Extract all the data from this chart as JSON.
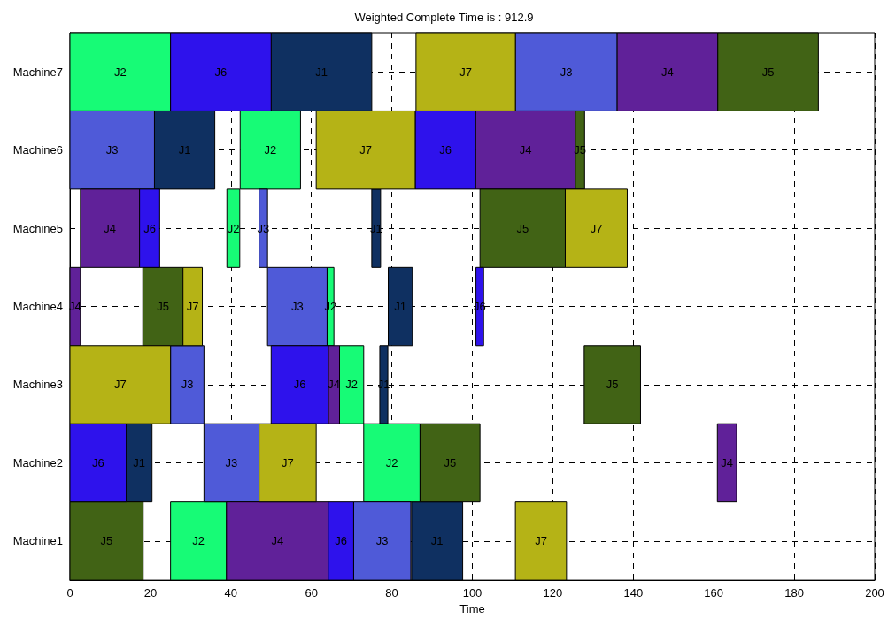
{
  "chart_data": {
    "type": "bar",
    "orientation": "horizontal",
    "title": "Weighted Complete Time is : 912.9",
    "xlabel": "Time",
    "categories": [
      "Machine7",
      "Machine6",
      "Machine5",
      "Machine4",
      "Machine3",
      "Machine2",
      "Machine1"
    ],
    "xlim": [
      0,
      200
    ],
    "xticks": [
      0,
      20,
      40,
      60,
      80,
      100,
      120,
      140,
      160,
      180,
      200
    ],
    "grid": true,
    "legend": false,
    "series": [
      {
        "name": "J1",
        "color": "#0f3061",
        "base": [
          50,
          21,
          75,
          79.1,
          77,
          14,
          84.9
        ],
        "values": [
          25,
          15,
          2.2,
          6,
          2,
          6.4,
          12.7
        ]
      },
      {
        "name": "J2",
        "color": "#17fb76",
        "base": [
          0,
          42.3,
          39,
          63.9,
          67,
          73,
          25
        ],
        "values": [
          25,
          15,
          3.2,
          1.7,
          6,
          14,
          13.9
        ]
      },
      {
        "name": "J3",
        "color": "#4f5ad8",
        "base": [
          110.7,
          0,
          47,
          49.1,
          25,
          33.3,
          70.5
        ],
        "values": [
          25.3,
          21,
          2.1,
          14.8,
          8.3,
          13.7,
          14.2
        ]
      },
      {
        "name": "J4",
        "color": "#602199",
        "base": [
          136,
          100.8,
          2.6,
          0,
          64.2,
          160.9,
          38.9
        ],
        "values": [
          25,
          24.8,
          14.7,
          2.6,
          2.8,
          4.8,
          25.3
        ]
      },
      {
        "name": "J5",
        "color": "#416315",
        "base": [
          161,
          125.6,
          101.9,
          18.1,
          127.8,
          87,
          0
        ],
        "values": [
          25,
          2.3,
          21.2,
          10,
          14,
          14.9,
          18.2
        ]
      },
      {
        "name": "J6",
        "color": "#2e12ec",
        "base": [
          25,
          85.8,
          17.3,
          100.9,
          50,
          0,
          64.2
        ],
        "values": [
          25,
          15,
          5,
          1.9,
          14.2,
          14,
          6.3
        ]
      },
      {
        "name": "J7",
        "color": "#b5b316",
        "base": [
          86,
          61.2,
          123.1,
          28.1,
          0,
          47,
          110.7
        ],
        "values": [
          24.7,
          24.6,
          15.4,
          4.8,
          25,
          14.2,
          12.7
        ]
      }
    ]
  }
}
